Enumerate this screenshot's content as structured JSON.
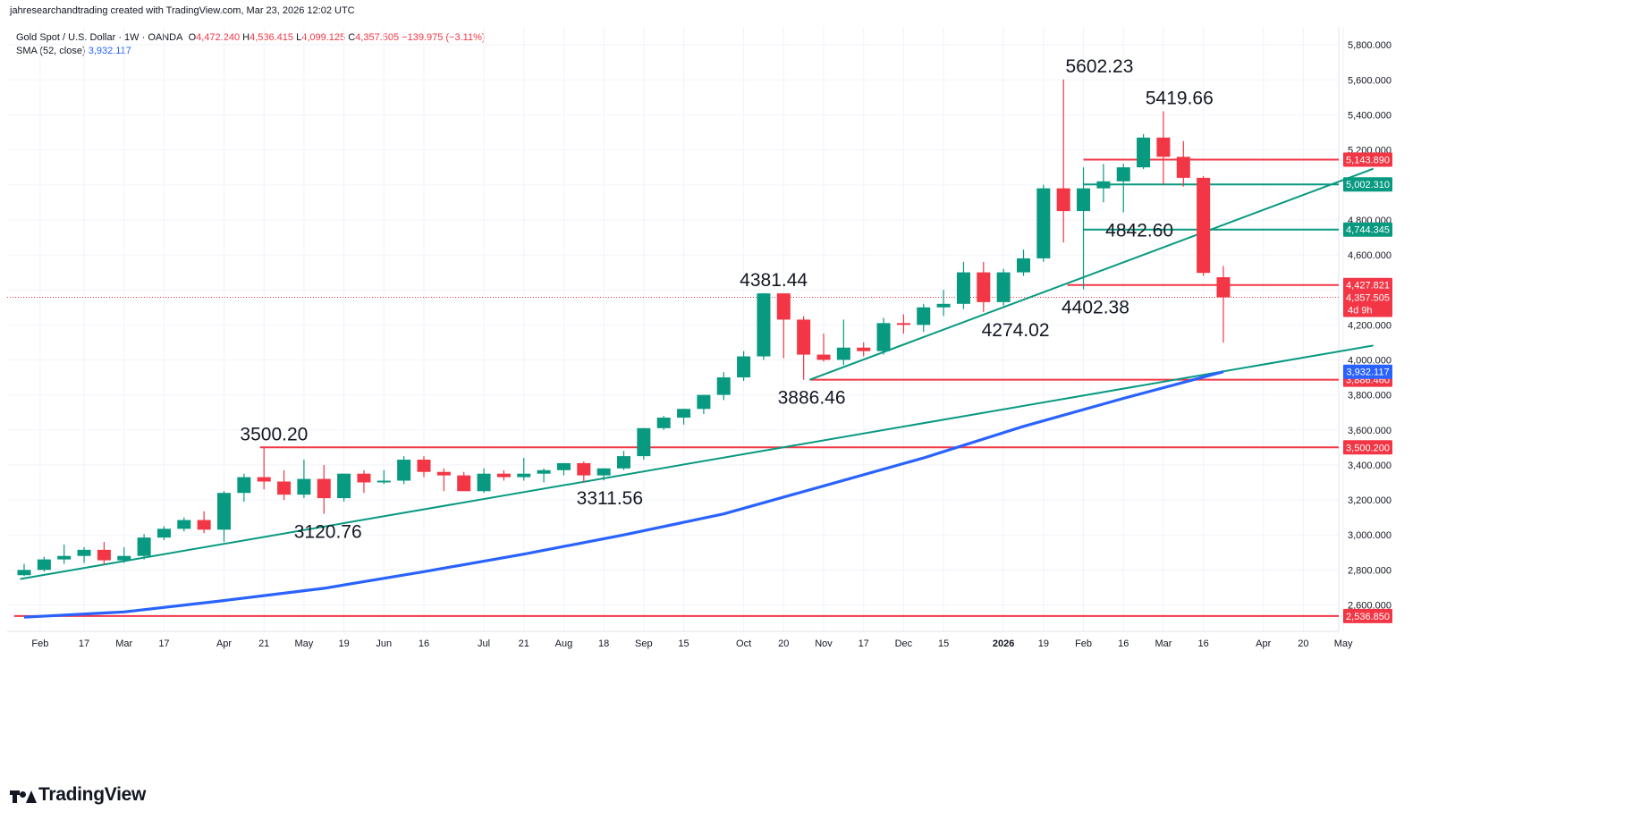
{
  "header": {
    "credit": "jahresearchandtrading created with TradingView.com, Mar 23, 2026 12:02 UTC"
  },
  "legend": {
    "symbol": "Gold Spot / U.S. Dollar · 1W · OANDA",
    "o_label": "O",
    "o_value": "4,472.240",
    "h_label": "H",
    "h_value": "4,536.415",
    "l_label": "L",
    "l_value": "4,099.125",
    "c_label": "C",
    "c_value": "4,357.505",
    "change": "−139.975 (−3.11%)",
    "sma_label": "SMA (52, close)",
    "sma_value": "3,932.117"
  },
  "brand": {
    "name": "TradingView"
  },
  "colors": {
    "up": "#089981",
    "down": "#f23645",
    "sma": "#2962ff",
    "trend": "#089981",
    "level_red": "#f23645",
    "level_green": "#089981"
  },
  "chart_data": {
    "type": "candlestick",
    "interval": "1W",
    "y_axis": {
      "min": 2400,
      "max": 5900,
      "ticks": [
        2600,
        2800,
        3000,
        3200,
        3400,
        3600,
        3800,
        4000,
        4200,
        4400,
        4600,
        4800,
        5000,
        5200,
        5400,
        5600,
        5800
      ],
      "tick_labels": [
        "2,600.000",
        "2,800.000",
        "3,000.000",
        "3,200.000",
        "3,400.000",
        "3,600.000",
        "3,800.000",
        "4,000.000",
        "4,200.000",
        "4,400.000",
        "4,600.000",
        "4,800.000",
        "5,000.000",
        "5,200.000",
        "5,400.000",
        "5,600.000",
        "5,800.000"
      ]
    },
    "x_axis": {
      "labels": [
        {
          "i": 0.8,
          "t": "Feb",
          "bold": false
        },
        {
          "i": 3,
          "t": "17",
          "bold": false
        },
        {
          "i": 5,
          "t": "Mar",
          "bold": false
        },
        {
          "i": 7,
          "t": "17",
          "bold": false
        },
        {
          "i": 10,
          "t": "Apr",
          "bold": false
        },
        {
          "i": 12,
          "t": "21",
          "bold": false
        },
        {
          "i": 14,
          "t": "May",
          "bold": false
        },
        {
          "i": 16,
          "t": "19",
          "bold": false
        },
        {
          "i": 18,
          "t": "Jun",
          "bold": false
        },
        {
          "i": 20,
          "t": "16",
          "bold": false
        },
        {
          "i": 23,
          "t": "Jul",
          "bold": false
        },
        {
          "i": 25,
          "t": "21",
          "bold": false
        },
        {
          "i": 27,
          "t": "Aug",
          "bold": false
        },
        {
          "i": 29,
          "t": "18",
          "bold": false
        },
        {
          "i": 31,
          "t": "Sep",
          "bold": false
        },
        {
          "i": 33,
          "t": "15",
          "bold": false
        },
        {
          "i": 36,
          "t": "Oct",
          "bold": false
        },
        {
          "i": 38,
          "t": "20",
          "bold": false
        },
        {
          "i": 40,
          "t": "Nov",
          "bold": false
        },
        {
          "i": 42,
          "t": "17",
          "bold": false
        },
        {
          "i": 44,
          "t": "Dec",
          "bold": false
        },
        {
          "i": 46,
          "t": "15",
          "bold": false
        },
        {
          "i": 49,
          "t": "2026",
          "bold": true
        },
        {
          "i": 51,
          "t": "19",
          "bold": false
        },
        {
          "i": 53,
          "t": "Feb",
          "bold": false
        },
        {
          "i": 55,
          "t": "16",
          "bold": false
        },
        {
          "i": 57,
          "t": "Mar",
          "bold": false
        },
        {
          "i": 59,
          "t": "16",
          "bold": false
        },
        {
          "i": 62,
          "t": "Apr",
          "bold": false
        },
        {
          "i": 64,
          "t": "20",
          "bold": false
        },
        {
          "i": 66,
          "t": "May",
          "bold": false
        }
      ]
    },
    "candles": [
      [
        2770,
        2835,
        2765,
        2800
      ],
      [
        2800,
        2875,
        2790,
        2860
      ],
      [
        2860,
        2945,
        2835,
        2880
      ],
      [
        2880,
        2930,
        2840,
        2915
      ],
      [
        2915,
        2960,
        2830,
        2855
      ],
      [
        2855,
        2930,
        2840,
        2880
      ],
      [
        2880,
        3005,
        2860,
        2985
      ],
      [
        2985,
        3050,
        2970,
        3035
      ],
      [
        3035,
        3100,
        3020,
        3085
      ],
      [
        3085,
        3135,
        3010,
        3030
      ],
      [
        3030,
        3250,
        2960,
        3240
      ],
      [
        3240,
        3350,
        3190,
        3330
      ],
      [
        3330,
        3500,
        3260,
        3305
      ],
      [
        3305,
        3370,
        3200,
        3230
      ],
      [
        3230,
        3430,
        3210,
        3320
      ],
      [
        3320,
        3400,
        3120,
        3210
      ],
      [
        3210,
        3350,
        3190,
        3350
      ],
      [
        3350,
        3370,
        3240,
        3300
      ],
      [
        3300,
        3370,
        3290,
        3310
      ],
      [
        3310,
        3450,
        3290,
        3430
      ],
      [
        3430,
        3450,
        3330,
        3360
      ],
      [
        3360,
        3380,
        3250,
        3340
      ],
      [
        3340,
        3360,
        3260,
        3250
      ],
      [
        3250,
        3380,
        3240,
        3350
      ],
      [
        3350,
        3370,
        3310,
        3330
      ],
      [
        3330,
        3440,
        3310,
        3350
      ],
      [
        3350,
        3380,
        3300,
        3370
      ],
      [
        3370,
        3410,
        3340,
        3410
      ],
      [
        3410,
        3420,
        3300,
        3340
      ],
      [
        3340,
        3380,
        3311.56,
        3380
      ],
      [
        3380,
        3480,
        3370,
        3450
      ],
      [
        3450,
        3610,
        3430,
        3610
      ],
      [
        3610,
        3680,
        3600,
        3670
      ],
      [
        3670,
        3720,
        3630,
        3720
      ],
      [
        3720,
        3800,
        3690,
        3800
      ],
      [
        3800,
        3930,
        3770,
        3900
      ],
      [
        3900,
        4050,
        3880,
        4020
      ],
      [
        4020,
        4381.44,
        4000,
        4380
      ],
      [
        4380,
        4381.44,
        4010,
        4230
      ],
      [
        4230,
        4250,
        3886.46,
        4030
      ],
      [
        4030,
        4150,
        3990,
        4000
      ],
      [
        4000,
        4230,
        3970,
        4070
      ],
      [
        4070,
        4100,
        4020,
        4050
      ],
      [
        4050,
        4240,
        4030,
        4210
      ],
      [
        4210,
        4260,
        4150,
        4200
      ],
      [
        4200,
        4320,
        4160,
        4300
      ],
      [
        4300,
        4400,
        4250,
        4320
      ],
      [
        4320,
        4560,
        4290,
        4500
      ],
      [
        4500,
        4560,
        4274.02,
        4330
      ],
      [
        4330,
        4520,
        4310,
        4500
      ],
      [
        4500,
        4630,
        4480,
        4580
      ],
      [
        4580,
        5000,
        4560,
        4980
      ],
      [
        4980,
        5602.23,
        4670,
        4850
      ],
      [
        4850,
        5100,
        4402.38,
        4980
      ],
      [
        4980,
        5120,
        4900,
        5020
      ],
      [
        5020,
        5120,
        4842.6,
        5100
      ],
      [
        5100,
        5290,
        5090,
        5270
      ],
      [
        5270,
        5419.66,
        5000,
        5160
      ],
      [
        5160,
        5250,
        4990,
        5040
      ],
      [
        5040,
        5050,
        4480,
        4497
      ],
      [
        4472.24,
        4536.415,
        4099.125,
        4357.505
      ]
    ],
    "sma": [
      [
        0,
        2530
      ],
      [
        5,
        2560
      ],
      [
        10,
        2625
      ],
      [
        15,
        2695
      ],
      [
        20,
        2790
      ],
      [
        25,
        2890
      ],
      [
        30,
        3000
      ],
      [
        35,
        3120
      ],
      [
        40,
        3280
      ],
      [
        45,
        3440
      ],
      [
        50,
        3620
      ],
      [
        55,
        3780
      ],
      [
        60,
        3932.117
      ]
    ],
    "trendlines": [
      {
        "x1": -0.2,
        "y1": 2748,
        "x2": 67.5,
        "y2": 4082
      },
      {
        "x1": 39.3,
        "y1": 3886.46,
        "x2": 67.5,
        "y2": 5092
      }
    ],
    "levels": [
      {
        "x_start": -0.5,
        "value": 2536.85,
        "label": "2,536.850",
        "color": "red"
      },
      {
        "x_start": 11.8,
        "value": 3500.2,
        "label": "3,500.200",
        "color": "red"
      },
      {
        "x_start": 39.3,
        "value": 3886.46,
        "label": "3,886.460",
        "color": "red"
      },
      {
        "x_start": 52.2,
        "value": 4427.821,
        "label": "4,427.821",
        "color": "red"
      },
      {
        "x_start": 53.0,
        "value": 4744.345,
        "label": "4,744.345",
        "color": "green"
      },
      {
        "x_start": 53.0,
        "value": 5002.31,
        "label": "5,002.310",
        "color": "green"
      },
      {
        "x_start": 53.0,
        "value": 5143.89,
        "label": "5,143.890",
        "color": "red"
      }
    ],
    "price_tags": [
      {
        "value": 4357.505,
        "label": "4,357.505",
        "sub": "4d 9h",
        "color": "red"
      },
      {
        "value": 3932.117,
        "label": "3,932.117",
        "color": "blue"
      }
    ],
    "annotations": [
      {
        "i": 53.8,
        "value": 5602.23,
        "text": "5602.23",
        "pos": "above"
      },
      {
        "i": 57.8,
        "value": 5419.66,
        "text": "5419.66",
        "pos": "above"
      },
      {
        "i": 37.5,
        "value": 4381.44,
        "text": "4381.44",
        "pos": "above"
      },
      {
        "i": 12.5,
        "value": 3500.2,
        "text": "3500.20",
        "pos": "above"
      },
      {
        "i": 55.8,
        "value": 4842.6,
        "text": "4842.60",
        "pos": "below"
      },
      {
        "i": 53.6,
        "value": 4402.38,
        "text": "4402.38",
        "pos": "below"
      },
      {
        "i": 49.6,
        "value": 4274.02,
        "text": "4274.02",
        "pos": "below"
      },
      {
        "i": 39.4,
        "value": 3886.46,
        "text": "3886.46",
        "pos": "below"
      },
      {
        "i": 15.2,
        "value": 3120.76,
        "text": "3120.76",
        "pos": "below"
      },
      {
        "i": 29.3,
        "value": 3311.56,
        "text": "3311.56",
        "pos": "below"
      }
    ],
    "last_price": 4357.505
  }
}
